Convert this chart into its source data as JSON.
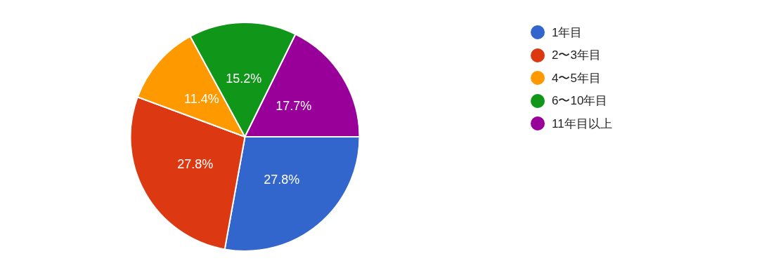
{
  "chart_data": {
    "type": "pie",
    "categories": [
      "1年目",
      "2〜3年目",
      "4〜5年目",
      "6〜10年目",
      "11年目以上"
    ],
    "values": [
      27.8,
      27.8,
      11.4,
      15.2,
      17.7
    ],
    "colors": [
      "#3366cc",
      "#dc3912",
      "#ff9900",
      "#109618",
      "#990099"
    ],
    "value_labels": [
      "27.8%",
      "27.8%",
      "11.4%",
      "15.2%",
      "17.7%"
    ],
    "legend": "right"
  }
}
